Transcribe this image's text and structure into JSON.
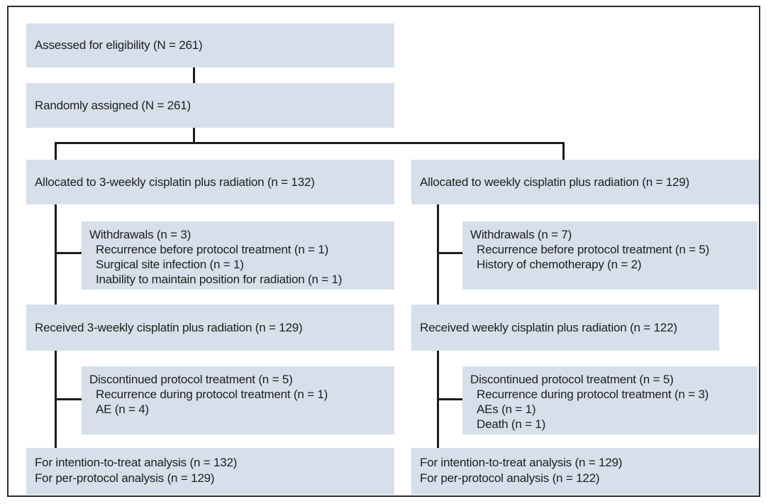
{
  "diagram": {
    "type": "consort-flow",
    "colors": {
      "box_fill": "#d6dfea",
      "connector_line": "#1c1c1c",
      "text": "#1f1f1f",
      "frame_border": "#2b2b2b"
    },
    "boxes": {
      "assessed": {
        "lines": [
          "Assessed for eligibility (N = 261)"
        ]
      },
      "randomized": {
        "lines": [
          "Randomly assigned (N = 261)"
        ]
      },
      "allocated_3weekly": {
        "lines": [
          "Allocated to 3-weekly cisplatin plus radiation (n = 132)"
        ]
      },
      "allocated_weekly": {
        "lines": [
          "Allocated to weekly cisplatin plus radiation (n = 129)"
        ]
      },
      "withdrawals_3weekly": {
        "lines": [
          "Withdrawals (n = 3)",
          "Recurrence before protocol treatment (n = 1)",
          "Surgical site infection (n = 1)",
          "Inability to maintain position for radiation (n = 1)"
        ]
      },
      "withdrawals_weekly": {
        "lines": [
          "Withdrawals (n = 7)",
          "Recurrence before protocol treatment (n = 5)",
          "History of chemotherapy (n = 2)"
        ]
      },
      "received_3weekly": {
        "lines": [
          "Received 3-weekly cisplatin plus radiation (n = 129)"
        ]
      },
      "received_weekly": {
        "lines": [
          "Received weekly cisplatin plus radiation (n = 122)"
        ]
      },
      "discontinued_3weekly": {
        "lines": [
          "Discontinued protocol treatment (n = 5)",
          "Recurrence during protocol treatment (n = 1)",
          "AE (n = 4)"
        ]
      },
      "discontinued_weekly": {
        "lines": [
          "Discontinued protocol treatment (n = 5)",
          "Recurrence during protocol treatment (n = 3)",
          "AEs (n = 1)",
          "Death (n = 1)"
        ]
      },
      "analysis_3weekly": {
        "lines": [
          "For intention-to-treat analysis (n = 132)",
          "For per-protocol analysis (n = 129)"
        ]
      },
      "analysis_weekly": {
        "lines": [
          "For intention-to-treat analysis (n = 129)",
          "For per-protocol analysis (n = 122)"
        ]
      }
    }
  }
}
